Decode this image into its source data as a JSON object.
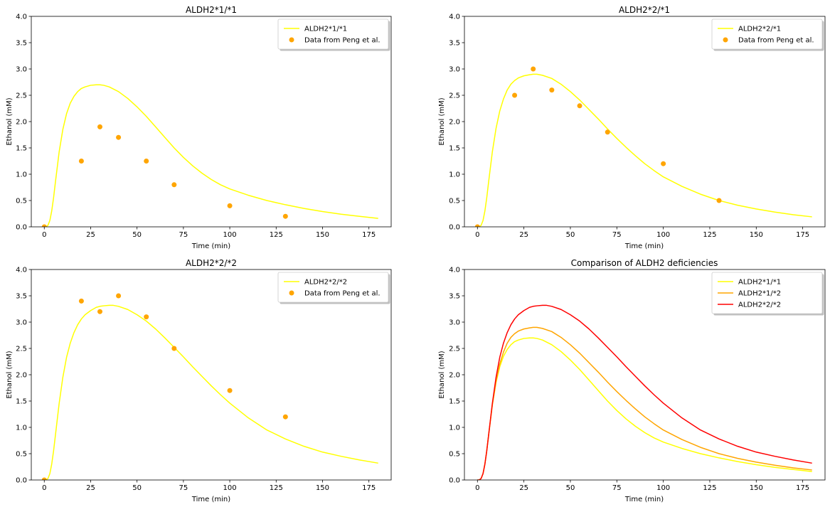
{
  "chart_data": [
    {
      "type": "line",
      "title": "ALDH2*1/*1",
      "xlabel": "Time (min)",
      "ylabel": "Ethanol (mM)",
      "xlim": [
        -7,
        187
      ],
      "ylim": [
        0,
        4
      ],
      "xticks": [
        "0",
        "25",
        "50",
        "75",
        "100",
        "125",
        "150",
        "175"
      ],
      "yticks": [
        "0.0",
        "0.5",
        "1.0",
        "1.5",
        "2.0",
        "2.5",
        "3.0",
        "3.5",
        "4.0"
      ],
      "legend_position": "top-right",
      "series": [
        {
          "name": "ALDH2*1/*1",
          "kind": "line",
          "color": "#ffff00",
          "x": [
            0,
            1,
            2,
            3,
            4,
            5,
            6,
            8,
            10,
            12,
            14,
            16,
            18,
            20,
            22,
            25,
            28,
            30,
            32,
            35,
            40,
            45,
            50,
            55,
            60,
            65,
            70,
            75,
            80,
            85,
            90,
            95,
            100,
            110,
            120,
            130,
            140,
            150,
            160,
            170,
            180
          ],
          "y": [
            0,
            0,
            0.03,
            0.12,
            0.3,
            0.55,
            0.85,
            1.42,
            1.85,
            2.15,
            2.35,
            2.48,
            2.57,
            2.63,
            2.66,
            2.69,
            2.7,
            2.7,
            2.69,
            2.66,
            2.57,
            2.44,
            2.28,
            2.1,
            1.9,
            1.7,
            1.5,
            1.32,
            1.16,
            1.02,
            0.9,
            0.8,
            0.72,
            0.6,
            0.5,
            0.42,
            0.35,
            0.29,
            0.24,
            0.2,
            0.16
          ]
        },
        {
          "name": "Data from Peng et al.",
          "kind": "scatter",
          "color": "#ffa500",
          "x": [
            0,
            20,
            30,
            40,
            55,
            70,
            100,
            130
          ],
          "y": [
            0,
            1.25,
            1.9,
            1.7,
            1.25,
            0.8,
            0.4,
            0.2
          ]
        }
      ]
    },
    {
      "type": "line",
      "title": "ALDH2*2/*1",
      "xlabel": "Time (min)",
      "ylabel": "Ethanol (mM)",
      "xlim": [
        -7,
        187
      ],
      "ylim": [
        0,
        4
      ],
      "xticks": [
        "0",
        "25",
        "50",
        "75",
        "100",
        "125",
        "150",
        "175"
      ],
      "yticks": [
        "0.0",
        "0.5",
        "1.0",
        "1.5",
        "2.0",
        "2.5",
        "3.0",
        "3.5",
        "4.0"
      ],
      "legend_position": "top-right",
      "series": [
        {
          "name": "ALDH2*2/*1",
          "kind": "line",
          "color": "#ffff00",
          "x": [
            0,
            1,
            2,
            3,
            4,
            5,
            6,
            8,
            10,
            12,
            14,
            16,
            18,
            20,
            22,
            25,
            28,
            30,
            32,
            35,
            40,
            45,
            50,
            55,
            60,
            65,
            70,
            75,
            80,
            85,
            90,
            95,
            100,
            110,
            120,
            130,
            140,
            150,
            160,
            170,
            180
          ],
          "y": [
            0,
            0,
            0.03,
            0.12,
            0.3,
            0.55,
            0.85,
            1.42,
            1.87,
            2.2,
            2.43,
            2.6,
            2.71,
            2.78,
            2.83,
            2.87,
            2.89,
            2.9,
            2.9,
            2.88,
            2.82,
            2.71,
            2.57,
            2.41,
            2.23,
            2.05,
            1.86,
            1.68,
            1.51,
            1.35,
            1.2,
            1.07,
            0.95,
            0.77,
            0.62,
            0.5,
            0.41,
            0.34,
            0.28,
            0.23,
            0.19
          ]
        },
        {
          "name": "Data from Peng et al.",
          "kind": "scatter",
          "color": "#ffa500",
          "x": [
            0,
            20,
            30,
            40,
            55,
            70,
            100,
            130
          ],
          "y": [
            0,
            2.5,
            3.0,
            2.6,
            2.3,
            1.8,
            1.2,
            0.5
          ]
        }
      ]
    },
    {
      "type": "line",
      "title": "ALDH2*2/*2",
      "xlabel": "Time (min)",
      "ylabel": "Ethanol (mM)",
      "xlim": [
        -7,
        187
      ],
      "ylim": [
        0,
        4
      ],
      "xticks": [
        "0",
        "25",
        "50",
        "75",
        "100",
        "125",
        "150",
        "175"
      ],
      "yticks": [
        "0.0",
        "0.5",
        "1.0",
        "1.5",
        "2.0",
        "2.5",
        "3.0",
        "3.5",
        "4.0"
      ],
      "legend_position": "top-right",
      "series": [
        {
          "name": "ALDH2*2/*2",
          "kind": "line",
          "color": "#ffff00",
          "x": [
            0,
            1,
            2,
            3,
            4,
            5,
            6,
            8,
            10,
            12,
            14,
            16,
            18,
            20,
            22,
            25,
            28,
            30,
            32,
            35,
            37,
            40,
            45,
            50,
            55,
            60,
            65,
            70,
            75,
            80,
            85,
            90,
            95,
            100,
            110,
            120,
            130,
            140,
            150,
            160,
            170,
            180
          ],
          "y": [
            0,
            0,
            0.03,
            0.12,
            0.3,
            0.55,
            0.85,
            1.45,
            1.95,
            2.33,
            2.6,
            2.8,
            2.95,
            3.06,
            3.14,
            3.22,
            3.28,
            3.3,
            3.31,
            3.32,
            3.32,
            3.3,
            3.24,
            3.14,
            3.02,
            2.87,
            2.7,
            2.52,
            2.34,
            2.15,
            1.97,
            1.79,
            1.62,
            1.46,
            1.18,
            0.95,
            0.78,
            0.64,
            0.53,
            0.45,
            0.38,
            0.32
          ]
        },
        {
          "name": "Data from Peng et al.",
          "kind": "scatter",
          "color": "#ffa500",
          "x": [
            0,
            20,
            30,
            40,
            55,
            70,
            100,
            130
          ],
          "y": [
            0,
            3.4,
            3.2,
            3.5,
            3.1,
            2.5,
            1.7,
            1.2
          ]
        }
      ]
    },
    {
      "type": "line",
      "title": "Comparison of ALDH2 deficiencies",
      "xlabel": "Time (min)",
      "ylabel": "Ethanol (mM)",
      "xlim": [
        -7,
        187
      ],
      "ylim": [
        0,
        4
      ],
      "xticks": [
        "0",
        "25",
        "50",
        "75",
        "100",
        "125",
        "150",
        "175"
      ],
      "yticks": [
        "0.0",
        "0.5",
        "1.0",
        "1.5",
        "2.0",
        "2.5",
        "3.0",
        "3.5",
        "4.0"
      ],
      "legend_position": "top-right",
      "series": [
        {
          "name": "ALDH2*1/*1",
          "kind": "line",
          "color": "#ffff00",
          "x": [
            0,
            1,
            2,
            3,
            4,
            5,
            6,
            8,
            10,
            12,
            14,
            16,
            18,
            20,
            22,
            25,
            28,
            30,
            32,
            35,
            40,
            45,
            50,
            55,
            60,
            65,
            70,
            75,
            80,
            85,
            90,
            95,
            100,
            110,
            120,
            130,
            140,
            150,
            160,
            170,
            180
          ],
          "y": [
            0,
            0,
            0.03,
            0.12,
            0.3,
            0.55,
            0.85,
            1.42,
            1.85,
            2.15,
            2.35,
            2.48,
            2.57,
            2.63,
            2.66,
            2.69,
            2.7,
            2.7,
            2.69,
            2.66,
            2.57,
            2.44,
            2.28,
            2.1,
            1.9,
            1.7,
            1.5,
            1.32,
            1.16,
            1.02,
            0.9,
            0.8,
            0.72,
            0.6,
            0.5,
            0.42,
            0.35,
            0.29,
            0.24,
            0.2,
            0.16
          ]
        },
        {
          "name": "ALDH2*1/*2",
          "kind": "line",
          "color": "#ffa500",
          "x": [
            0,
            1,
            2,
            3,
            4,
            5,
            6,
            8,
            10,
            12,
            14,
            16,
            18,
            20,
            22,
            25,
            28,
            30,
            32,
            35,
            40,
            45,
            50,
            55,
            60,
            65,
            70,
            75,
            80,
            85,
            90,
            95,
            100,
            110,
            120,
            130,
            140,
            150,
            160,
            170,
            180
          ],
          "y": [
            0,
            0,
            0.03,
            0.12,
            0.3,
            0.55,
            0.85,
            1.42,
            1.87,
            2.2,
            2.43,
            2.6,
            2.71,
            2.78,
            2.83,
            2.87,
            2.89,
            2.9,
            2.9,
            2.88,
            2.82,
            2.71,
            2.57,
            2.41,
            2.23,
            2.05,
            1.86,
            1.68,
            1.51,
            1.35,
            1.2,
            1.07,
            0.95,
            0.77,
            0.62,
            0.5,
            0.41,
            0.34,
            0.28,
            0.23,
            0.19
          ]
        },
        {
          "name": "ALDH2*2/*2",
          "kind": "line",
          "color": "#ff0000",
          "x": [
            0,
            1,
            2,
            3,
            4,
            5,
            6,
            8,
            10,
            12,
            14,
            16,
            18,
            20,
            22,
            25,
            28,
            30,
            32,
            35,
            37,
            40,
            45,
            50,
            55,
            60,
            65,
            70,
            75,
            80,
            85,
            90,
            95,
            100,
            110,
            120,
            130,
            140,
            150,
            160,
            170,
            180
          ],
          "y": [
            0,
            0,
            0.03,
            0.12,
            0.3,
            0.55,
            0.85,
            1.45,
            1.95,
            2.33,
            2.6,
            2.8,
            2.95,
            3.06,
            3.14,
            3.22,
            3.28,
            3.3,
            3.31,
            3.32,
            3.32,
            3.3,
            3.24,
            3.14,
            3.02,
            2.87,
            2.7,
            2.52,
            2.34,
            2.15,
            1.97,
            1.79,
            1.62,
            1.46,
            1.18,
            0.95,
            0.78,
            0.64,
            0.53,
            0.45,
            0.38,
            0.32
          ]
        }
      ]
    }
  ]
}
